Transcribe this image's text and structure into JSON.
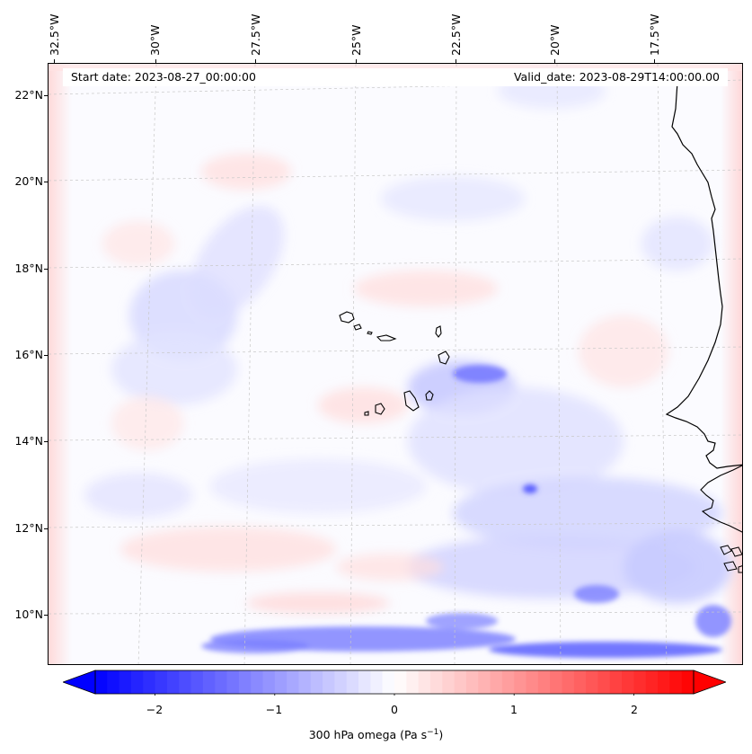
{
  "map": {
    "start_date": "Start date: 2023-08-27_00:00:00",
    "valid_date": "Valid_date: 2023-08-29T14:00:00.00",
    "longitude_labels": [
      "32.5°W",
      "30°W",
      "27.5°W",
      "25°W",
      "22.5°W",
      "20°W",
      "17.5°W"
    ],
    "latitude_labels": [
      "22°N",
      "20°N",
      "18°N",
      "16°N",
      "14°N",
      "12°N",
      "10°N"
    ],
    "field_variable": "300 hPa omega"
  },
  "colorbar": {
    "label_text": "300 hPa omega (Pa s",
    "label_superscript": "−1",
    "label_close": ")",
    "tick_labels": [
      "−2",
      "−1",
      "0",
      "1",
      "2"
    ],
    "tick_values": [
      -2,
      -1,
      0,
      1,
      2
    ],
    "range": [
      -2.5,
      2.5
    ],
    "colormap": "bwr",
    "low_color": "#0000ff",
    "mid_color": "#ffffff",
    "high_color": "#ff0000"
  }
}
